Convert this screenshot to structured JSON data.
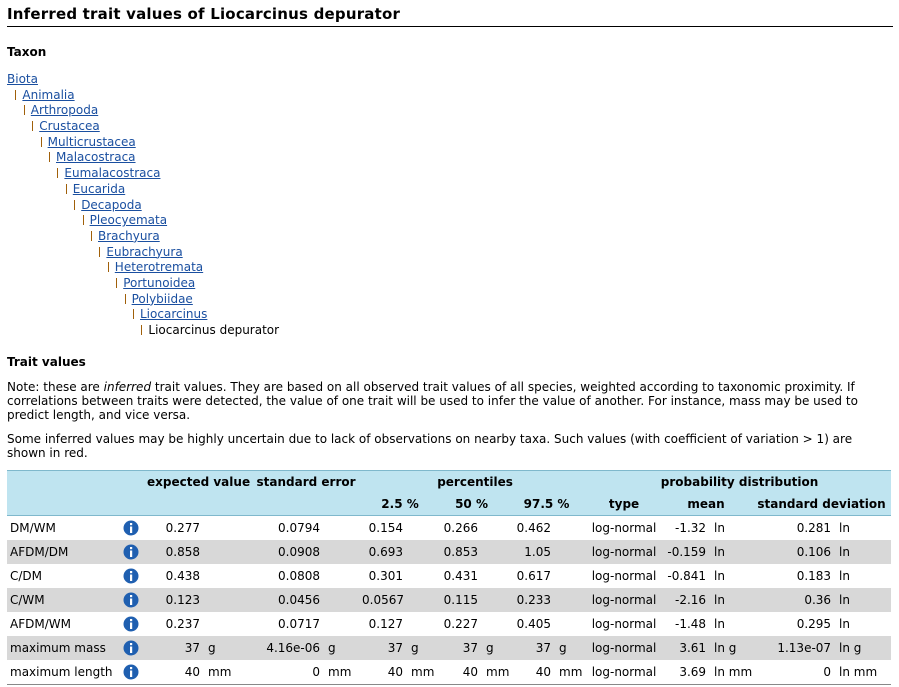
{
  "header": {
    "title": "Inferred trait values of Liocarcinus depurator"
  },
  "taxon": {
    "heading": "Taxon",
    "lineage": [
      "Biota",
      "Animalia",
      "Arthropoda",
      "Crustacea",
      "Multicrustacea",
      "Malacostraca",
      "Eumalacostraca",
      "Eucarida",
      "Decapoda",
      "Pleocyemata",
      "Brachyura",
      "Eubrachyura",
      "Heterotremata",
      "Portunoidea",
      "Polybiidae",
      "Liocarcinus"
    ],
    "current": "Liocarcinus depurator"
  },
  "traits": {
    "heading": "Trait values",
    "note": [
      "Note: these are ",
      "inferred",
      " trait values. They are based on all observed trait values of all species, weighted according to taxonomic proximity. If correlations between traits were detected, the value of one trait will be used to infer the value of another. For instance, mass may be used to predict length, and vice versa."
    ],
    "uncertainty": "Some inferred values may be highly uncertain due to lack of observations on nearby taxa. Such values (with coefficient of variation > 1) are shown in red.",
    "table": {
      "groups": {
        "expected": "expected value",
        "se": "standard error",
        "percentiles": "percentiles",
        "distribution": "probability distribution"
      },
      "columns": {
        "p2_5": "2.5 %",
        "p50": "50 %",
        "p97_5": "97.5 %",
        "type": "type",
        "mean": "mean",
        "sd": "standard deviation"
      },
      "rows": [
        {
          "name": "DM/WM",
          "expected": "0.277",
          "se": "0.0794",
          "p2_5": "0.154",
          "p50": "0.266",
          "p97_5": "0.462",
          "type": "log-normal",
          "mean": "-1.32",
          "mean_unit": "ln",
          "sd": "0.281",
          "sd_unit": "ln"
        },
        {
          "name": "AFDM/DM",
          "expected": "0.858",
          "se": "0.0908",
          "p2_5": "0.693",
          "p50": "0.853",
          "p97_5": "1.05",
          "type": "log-normal",
          "mean": "-0.159",
          "mean_unit": "ln",
          "sd": "0.106",
          "sd_unit": "ln"
        },
        {
          "name": "C/DM",
          "expected": "0.438",
          "se": "0.0808",
          "p2_5": "0.301",
          "p50": "0.431",
          "p97_5": "0.617",
          "type": "log-normal",
          "mean": "-0.841",
          "mean_unit": "ln",
          "sd": "0.183",
          "sd_unit": "ln"
        },
        {
          "name": "C/WM",
          "expected": "0.123",
          "se": "0.0456",
          "p2_5": "0.0567",
          "p50": "0.115",
          "p97_5": "0.233",
          "type": "log-normal",
          "mean": "-2.16",
          "mean_unit": "ln",
          "sd": "0.36",
          "sd_unit": "ln"
        },
        {
          "name": "AFDM/WM",
          "expected": "0.237",
          "se": "0.0717",
          "p2_5": "0.127",
          "p50": "0.227",
          "p97_5": "0.405",
          "type": "log-normal",
          "mean": "-1.48",
          "mean_unit": "ln",
          "sd": "0.295",
          "sd_unit": "ln"
        },
        {
          "name": "maximum mass",
          "expected": "37",
          "unit": "g",
          "se": "4.16e-06",
          "p2_5": "37",
          "p50": "37",
          "p97_5": "37",
          "type": "log-normal",
          "mean": "3.61",
          "mean_unit": "ln g",
          "sd": "1.13e-07",
          "sd_unit": "ln g"
        },
        {
          "name": "maximum length",
          "expected": "40",
          "unit": "mm",
          "se": "0",
          "p2_5": "40",
          "p50": "40",
          "p97_5": "40",
          "type": "log-normal",
          "mean": "3.69",
          "mean_unit": "ln mm",
          "sd": "0",
          "sd_unit": "ln mm"
        }
      ]
    }
  }
}
